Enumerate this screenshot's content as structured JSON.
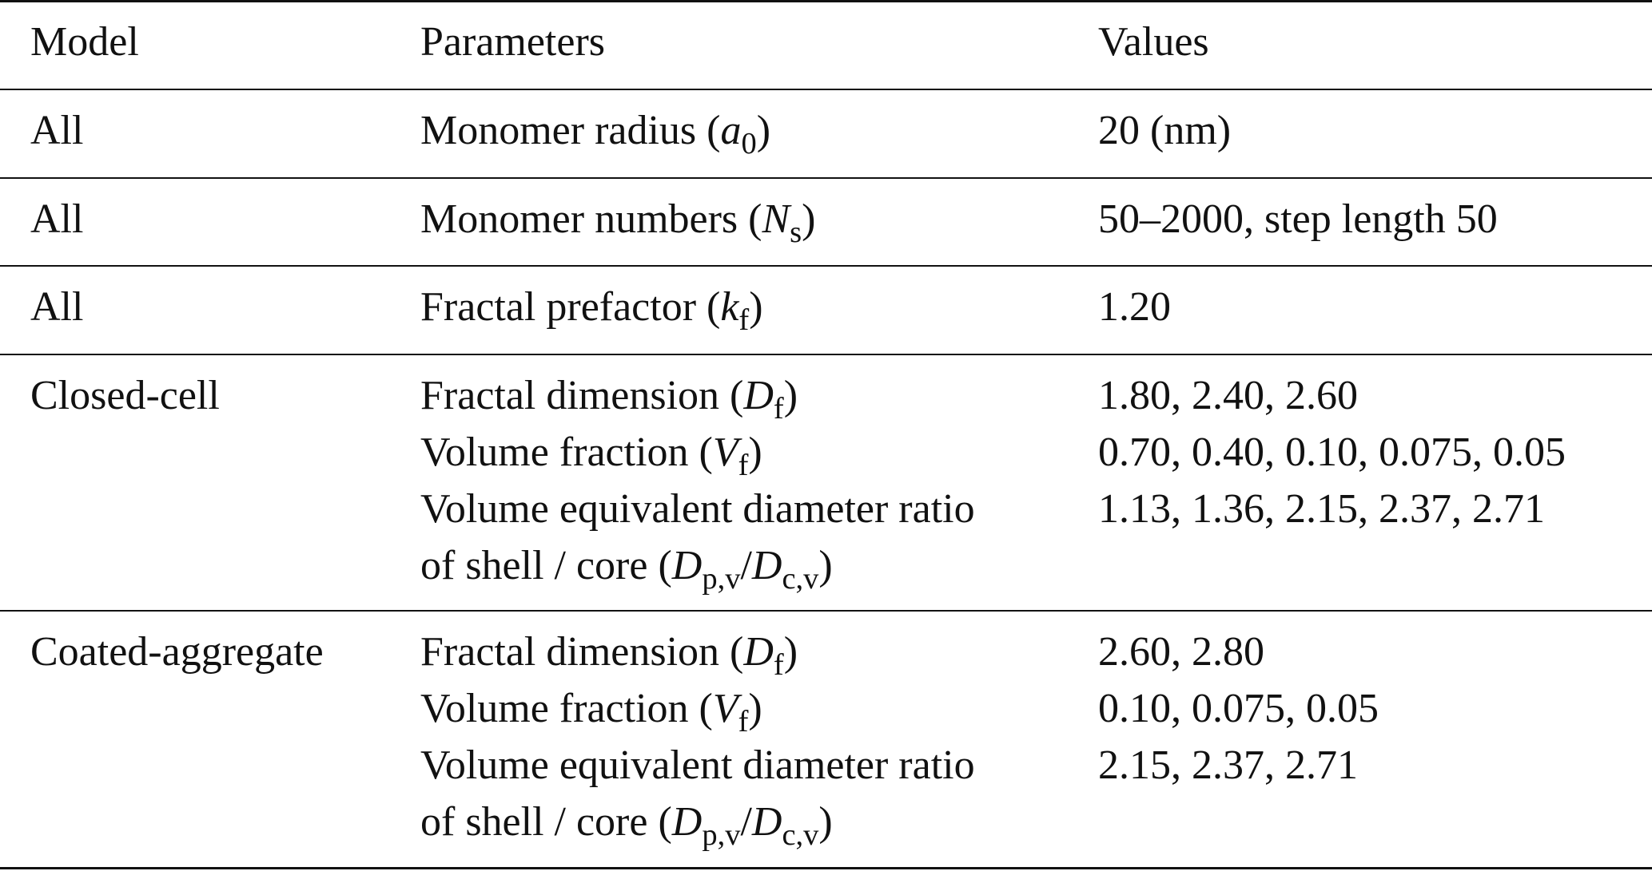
{
  "table": {
    "headers": {
      "model": "Model",
      "parameters": "Parameters",
      "values": "Values"
    },
    "rows": [
      {
        "model": "All",
        "params": [
          {
            "pre": "Monomer radius (",
            "sym": "a",
            "sub": "0",
            "mid": "",
            "sym2": "",
            "sub2": "",
            "post": ")"
          }
        ],
        "values": [
          "20 (nm)"
        ]
      },
      {
        "model": "All",
        "params": [
          {
            "pre": "Monomer numbers (",
            "sym": "N",
            "sub": "s",
            "mid": "",
            "sym2": "",
            "sub2": "",
            "post": ")"
          }
        ],
        "values": [
          "50–2000, step length 50"
        ]
      },
      {
        "model": "All",
        "params": [
          {
            "pre": "Fractal prefactor (",
            "sym": "k",
            "sub": "f",
            "mid": "",
            "sym2": "",
            "sub2": "",
            "post": ")"
          }
        ],
        "values": [
          "1.20"
        ]
      },
      {
        "model": "Closed-cell",
        "params": [
          {
            "pre": "Fractal dimension (",
            "sym": "D",
            "sub": "f",
            "mid": "",
            "sym2": "",
            "sub2": "",
            "post": ")"
          },
          {
            "pre": "Volume fraction (",
            "sym": "V",
            "sub": "f",
            "mid": "",
            "sym2": "",
            "sub2": "",
            "post": ")"
          },
          {
            "pre": "Volume equivalent diameter ratio",
            "sym": "",
            "sub": "",
            "mid": "",
            "sym2": "",
            "sub2": "",
            "post": ""
          },
          {
            "pre": "of shell / core (",
            "sym": "D",
            "sub": "p,v",
            "mid": "/",
            "sym2": "D",
            "sub2": "c,v",
            "post": ")"
          }
        ],
        "values": [
          "1.80, 2.40, 2.60",
          "0.70, 0.40, 0.10, 0.075, 0.05",
          "1.13, 1.36, 2.15, 2.37, 2.71",
          ""
        ]
      },
      {
        "model": "Coated-aggregate",
        "params": [
          {
            "pre": "Fractal dimension (",
            "sym": "D",
            "sub": "f",
            "mid": "",
            "sym2": "",
            "sub2": "",
            "post": ")"
          },
          {
            "pre": "Volume fraction (",
            "sym": "V",
            "sub": "f",
            "mid": "",
            "sym2": "",
            "sub2": "",
            "post": ")"
          },
          {
            "pre": "Volume equivalent diameter ratio",
            "sym": "",
            "sub": "",
            "mid": "",
            "sym2": "",
            "sub2": "",
            "post": ""
          },
          {
            "pre": "of shell / core (",
            "sym": "D",
            "sub": "p,v",
            "mid": "/",
            "sym2": "D",
            "sub2": "c,v",
            "post": ")"
          }
        ],
        "values": [
          "2.60, 2.80",
          "0.10, 0.075, 0.05",
          "2.15, 2.37, 2.71",
          ""
        ]
      }
    ]
  }
}
